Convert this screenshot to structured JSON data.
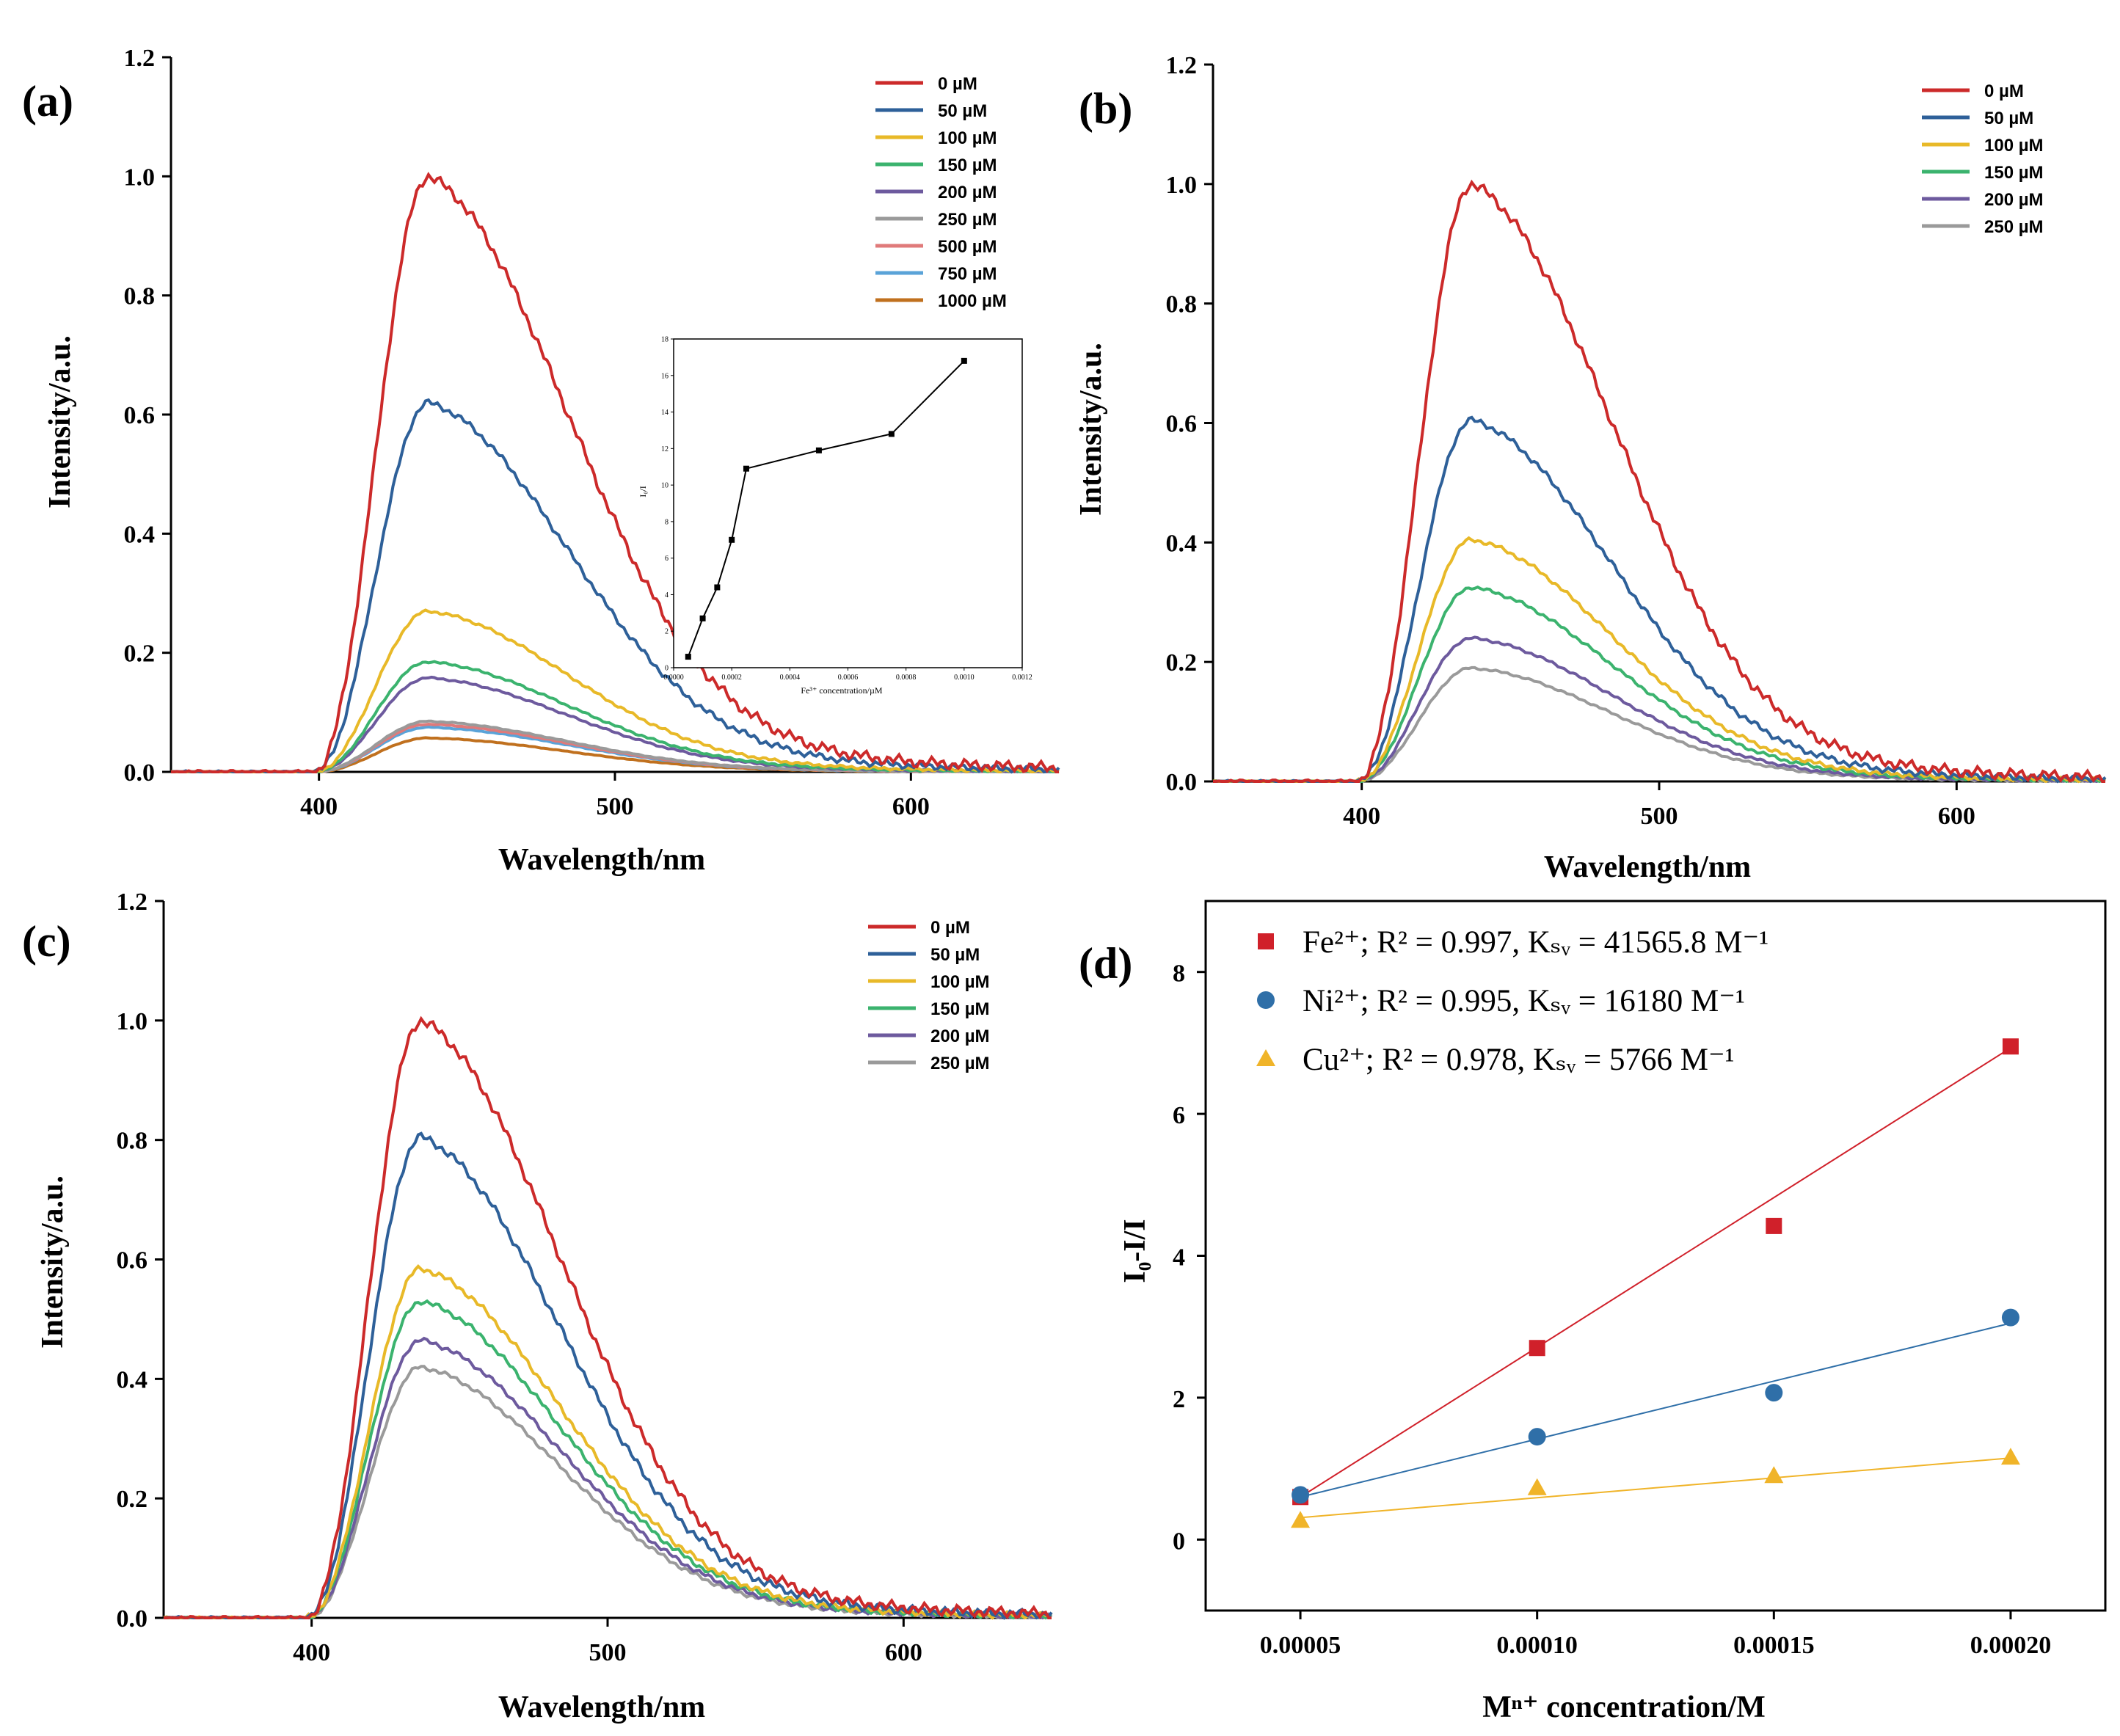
{
  "panels": {
    "a": {
      "letter": "(a)",
      "xlabel": "Wavelength/nm",
      "ylabel": "Intensity/a.u.",
      "inset_xlabel": "Fe³⁺ concentration/µM",
      "inset_ylabel": "I₀/I"
    },
    "b": {
      "letter": "(b)",
      "xlabel": "Wavelength/nm",
      "ylabel": "Intensity/a.u."
    },
    "c": {
      "letter": "(c)",
      "xlabel": "Wavelength/nm",
      "ylabel": "Intensity/a.u."
    },
    "d": {
      "letter": "(d)",
      "xlabel": "Mⁿ⁺ concentration/M",
      "ylabel": "I₀-I/I"
    }
  },
  "chart_data": [
    {
      "id": "a",
      "type": "line",
      "xlabel": "Wavelength/nm",
      "ylabel": "Intensity/a.u.",
      "xlim": [
        350,
        650
      ],
      "ylim": [
        0,
        1.2
      ],
      "xticks": [
        "400",
        "500",
        "600"
      ],
      "yticks": [
        "0.0",
        "0.2",
        "0.4",
        "0.6",
        "0.8",
        "1.0",
        "1.2"
      ],
      "legend_position": "top-right",
      "peak_wavelength": 437,
      "series": [
        {
          "name": "0 µM",
          "color": "#cc2a2a",
          "peak": 1.0
        },
        {
          "name": "50 µM",
          "color": "#2e6099",
          "peak": 0.62
        },
        {
          "name": "100 µM",
          "color": "#e8b928",
          "peak": 0.27
        },
        {
          "name": "150 µM",
          "color": "#3bb36e",
          "peak": 0.185
        },
        {
          "name": "200 µM",
          "color": "#6d5a9e",
          "peak": 0.158
        },
        {
          "name": "250 µM",
          "color": "#9a9a9a",
          "peak": 0.085
        },
        {
          "name": "500 µM",
          "color": "#e07a7a",
          "peak": 0.08
        },
        {
          "name": "750 µM",
          "color": "#5aa3d8",
          "peak": 0.075
        },
        {
          "name": "1000 µM",
          "color": "#c0701e",
          "peak": 0.057
        }
      ]
    },
    {
      "id": "a-inset",
      "type": "line",
      "xlabel": "Fe³⁺ concentration/µM",
      "ylabel": "I₀/I",
      "xlim": [
        0,
        0.0012
      ],
      "ylim": [
        0,
        18
      ],
      "xticks": [
        "0.0000",
        "0.0002",
        "0.0004",
        "0.0006",
        "0.0008",
        "0.0010",
        "0.0012"
      ],
      "yticks": [
        "0",
        "2",
        "4",
        "6",
        "8",
        "10",
        "12",
        "14",
        "16",
        "18"
      ],
      "x": [
        5e-05,
        0.0001,
        0.00015,
        0.0002,
        0.00025,
        0.0005,
        0.00075,
        0.001
      ],
      "y": [
        0.6,
        2.7,
        4.4,
        7.0,
        10.9,
        11.9,
        12.8,
        16.8
      ]
    },
    {
      "id": "b",
      "type": "line",
      "xlabel": "Wavelength/nm",
      "ylabel": "Intensity/a.u.",
      "xlim": [
        350,
        650
      ],
      "ylim": [
        0,
        1.2
      ],
      "xticks": [
        "400",
        "500",
        "600"
      ],
      "yticks": [
        "0.0",
        "0.2",
        "0.4",
        "0.6",
        "0.8",
        "1.0",
        "1.2"
      ],
      "legend_position": "top-right",
      "peak_wavelength": 437,
      "series": [
        {
          "name": "0 µM",
          "color": "#cc2a2a",
          "peak": 1.0
        },
        {
          "name": "50 µM",
          "color": "#2e6099",
          "peak": 0.605
        },
        {
          "name": "100 µM",
          "color": "#e8b928",
          "peak": 0.405
        },
        {
          "name": "150 µM",
          "color": "#3bb36e",
          "peak": 0.325
        },
        {
          "name": "200 µM",
          "color": "#6d5a9e",
          "peak": 0.24
        },
        {
          "name": "250 µM",
          "color": "#9a9a9a",
          "peak": 0.19
        }
      ]
    },
    {
      "id": "c",
      "type": "line",
      "xlabel": "Wavelength/nm",
      "ylabel": "Intensity/a.u.",
      "xlim": [
        350,
        650
      ],
      "ylim": [
        0,
        1.2
      ],
      "xticks": [
        "400",
        "500",
        "600"
      ],
      "yticks": [
        "0.0",
        "0.2",
        "0.4",
        "0.6",
        "0.8",
        "1.0",
        "1.2"
      ],
      "legend_position": "top-right",
      "peak_wavelength": 437,
      "series": [
        {
          "name": "0 µM",
          "color": "#cc2a2a",
          "peak": 1.0
        },
        {
          "name": "50 µM",
          "color": "#2e6099",
          "peak": 0.805
        },
        {
          "name": "100 µM",
          "color": "#e8b928",
          "peak": 0.585
        },
        {
          "name": "150 µM",
          "color": "#3bb36e",
          "peak": 0.53
        },
        {
          "name": "200 µM",
          "color": "#6d5a9e",
          "peak": 0.465
        },
        {
          "name": "250 µM",
          "color": "#9a9a9a",
          "peak": 0.42
        }
      ]
    },
    {
      "id": "d",
      "type": "scatter",
      "xlabel": "Mⁿ⁺ concentration/M",
      "ylabel": "I₀-I/I",
      "xlim": [
        3e-05,
        0.00022
      ],
      "ylim": [
        -1,
        9
      ],
      "xticks": [
        "0.00005",
        "0.00010",
        "0.00015",
        "0.00020"
      ],
      "yticks": [
        "0",
        "2",
        "4",
        "6",
        "8"
      ],
      "legend_position": "top-left",
      "x": [
        5e-05,
        0.0001,
        0.00015,
        0.0002
      ],
      "series": [
        {
          "name": "Fe²⁺; R² = 0.997, Kₛᵥ = 41565.8 M⁻¹",
          "color": "#d0202a",
          "marker": "square",
          "y": [
            0.6,
            2.7,
            4.42,
            6.95
          ],
          "fit": [
            0.6,
            6.93
          ]
        },
        {
          "name": "Ni²⁺; R² = 0.995, Kₛᵥ = 16180 M⁻¹",
          "color": "#2f6fa8",
          "marker": "circle",
          "y": [
            0.63,
            1.45,
            2.07,
            3.13
          ],
          "fit": [
            0.6,
            3.05
          ]
        },
        {
          "name": "Cu²⁺; R² = 0.978, Kₛᵥ = 5766  M⁻¹",
          "color": "#f0b429",
          "marker": "triangle",
          "y": [
            0.27,
            0.73,
            0.9,
            1.16
          ],
          "fit": [
            0.31,
            1.15
          ]
        }
      ]
    }
  ]
}
